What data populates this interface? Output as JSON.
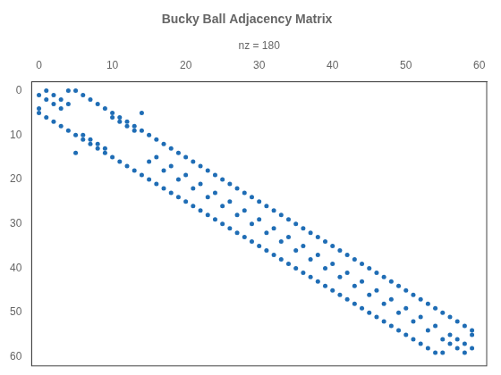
{
  "chart_data": {
    "type": "scatter",
    "title": "Bucky Ball Adjacency Matrix",
    "xlabel": "nz = 180",
    "x": [
      1,
      0,
      4,
      0,
      5,
      0,
      2,
      1,
      6,
      1,
      3,
      2,
      7,
      2,
      4,
      3,
      8,
      3,
      9,
      4,
      10,
      5,
      14,
      5,
      10,
      6,
      11,
      6,
      11,
      7,
      12,
      7,
      12,
      8,
      13,
      8,
      13,
      9,
      14,
      9,
      15,
      10,
      16,
      11,
      17,
      12,
      18,
      13,
      19,
      14,
      16,
      15,
      20,
      15,
      21,
      16,
      18,
      17,
      22,
      17,
      23,
      18,
      20,
      19,
      24,
      19,
      25,
      20,
      22,
      21,
      26,
      21,
      27,
      22,
      24,
      23,
      28,
      23,
      29,
      24,
      26,
      25,
      30,
      25,
      31,
      26,
      28,
      27,
      32,
      27,
      33,
      28,
      30,
      29,
      34,
      29,
      35,
      30,
      32,
      31,
      36,
      31,
      37,
      32,
      34,
      33,
      38,
      33,
      39,
      34,
      36,
      35,
      40,
      35,
      41,
      36,
      38,
      37,
      42,
      37,
      43,
      38,
      40,
      39,
      44,
      39,
      45,
      40,
      42,
      41,
      46,
      41,
      47,
      42,
      44,
      43,
      48,
      43,
      49,
      44,
      46,
      45,
      50,
      45,
      51,
      46,
      48,
      47,
      52,
      47,
      53,
      48,
      50,
      49,
      54,
      49,
      55,
      50,
      52,
      51,
      56,
      51,
      57,
      52,
      54,
      53,
      58,
      53,
      59,
      54,
      56,
      55,
      59,
      55,
      57,
      56,
      58,
      57,
      59,
      58
    ],
    "values": [
      0,
      1,
      0,
      4,
      0,
      5,
      1,
      2,
      1,
      6,
      2,
      3,
      2,
      7,
      3,
      4,
      3,
      8,
      4,
      9,
      5,
      10,
      5,
      14,
      6,
      10,
      6,
      11,
      7,
      11,
      7,
      12,
      8,
      12,
      8,
      13,
      9,
      13,
      9,
      14,
      10,
      15,
      11,
      16,
      12,
      17,
      13,
      18,
      14,
      19,
      15,
      16,
      15,
      20,
      16,
      21,
      17,
      18,
      17,
      22,
      18,
      23,
      19,
      20,
      19,
      24,
      20,
      25,
      21,
      22,
      21,
      26,
      22,
      27,
      23,
      24,
      23,
      28,
      24,
      29,
      25,
      26,
      25,
      30,
      26,
      31,
      27,
      28,
      27,
      32,
      28,
      33,
      29,
      30,
      29,
      34,
      30,
      35,
      31,
      32,
      31,
      36,
      32,
      37,
      33,
      34,
      33,
      38,
      34,
      39,
      35,
      36,
      35,
      40,
      36,
      41,
      37,
      38,
      37,
      42,
      38,
      43,
      39,
      40,
      39,
      44,
      40,
      45,
      41,
      42,
      41,
      46,
      42,
      47,
      43,
      44,
      43,
      48,
      44,
      49,
      45,
      46,
      45,
      50,
      46,
      51,
      47,
      48,
      47,
      52,
      48,
      53,
      49,
      50,
      49,
      54,
      50,
      55,
      51,
      52,
      51,
      56,
      52,
      57,
      53,
      54,
      53,
      58,
      54,
      59,
      55,
      56,
      55,
      59,
      56,
      57,
      57,
      58,
      58,
      59
    ],
    "color": "#1f6db5",
    "marker": "circle",
    "xlim": [
      -1,
      61
    ],
    "ylim": [
      62,
      -2
    ],
    "xticks": [
      0,
      10,
      20,
      30,
      40,
      50,
      60
    ],
    "yticks": [
      0,
      10,
      20,
      30,
      40,
      50,
      60
    ],
    "grid": false
  }
}
